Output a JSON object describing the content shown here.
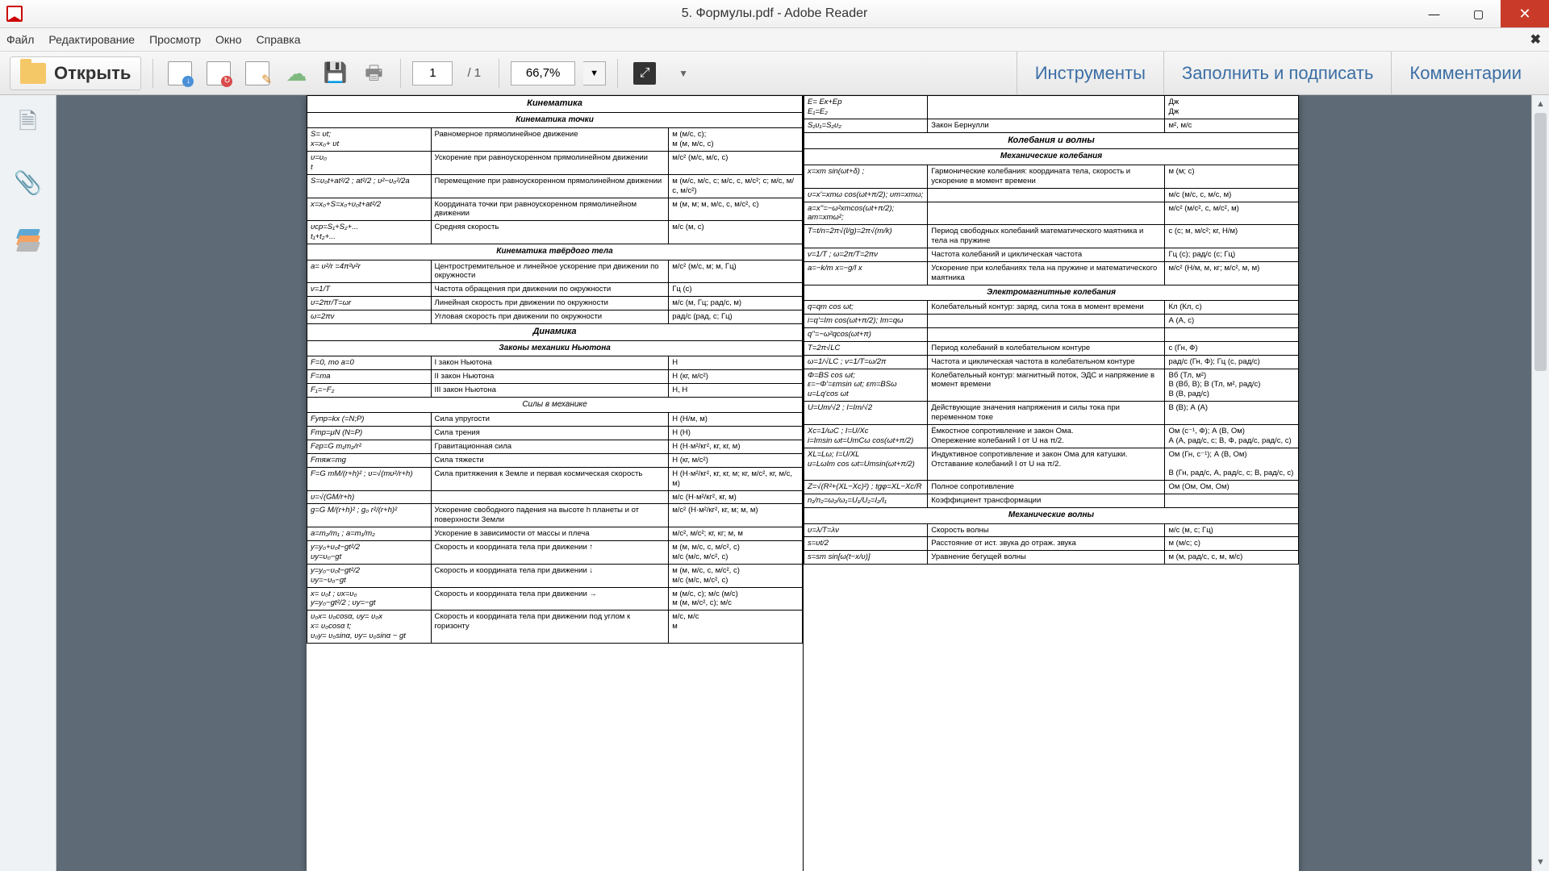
{
  "window": {
    "title": "5. Формулы.pdf - Adobe Reader",
    "controls": {
      "min": "—",
      "max": "▢",
      "close": "✕"
    }
  },
  "menu": {
    "items": [
      "Файл",
      "Редактирование",
      "Просмотр",
      "Окно",
      "Справка"
    ],
    "close_x": "✖"
  },
  "toolbar": {
    "open_label": "Открыть",
    "page_current": "1",
    "page_total": "/   1",
    "zoom": "66,7%",
    "zoom_dd": "▼",
    "fit": "⤢",
    "more": "▼",
    "right_tabs": [
      "Инструменты",
      "Заполнить и подписать",
      "Комментарии"
    ]
  },
  "sidebar": {
    "thumb": "🗎",
    "attach": "📎"
  },
  "doc": {
    "left": {
      "h1": "Кинематика",
      "h2": "Кинематика точки",
      "rows1": [
        [
          "S= υt;\nx=x₀+ υt",
          "Равномерное прямолинейное движение",
          "м (м/с, с);\nм (м, м/с, с)"
        ],
        [
          "υ=υ₀\n  t",
          "Ускорение при равноускоренном прямолинейном движении",
          "м/с² (м/с, м/с, с)"
        ],
        [
          "S=υ₀t+at²/2 ; at²/2 ; υ²−υ₀²/2a",
          "Перемещение  при равноускоренном прямолинейном движении",
          "м (м/с, м/с, с; м/с, с, м/с²; с; м/с, м/с, м/с²)"
        ],
        [
          "x=x₀+S=x₀+υ₀t+at²/2",
          "Координата точки  при равноускоренном прямолинейном движении",
          "м (м, м; м, м/с, с, м/с², с)"
        ],
        [
          "υср=S₁+S₂+...\n     t₁+t₂+...",
          "Средняя скорость",
          "м/с (м, с)"
        ]
      ],
      "h3": "Кинематика твёрдого тела",
      "rows2": [
        [
          "a= υ²/r =4π²ν²r",
          "Центростремительное и линейное ускорение при движении по окружности",
          "м/с² (м/с, м; м, Гц)"
        ],
        [
          "ν=1/T",
          "Частота обращения  при движении по окружности",
          "Гц (с)"
        ],
        [
          "υ=2πr/T=ωr",
          "Линейная скорость при движении по окружности",
          "м/с (м, Гц; рад/с, м)"
        ],
        [
          "ω=2πν",
          "Угловая скорость  при движении по окружности",
          "рад/с (рад, с; Гц)"
        ]
      ],
      "h4": "Динамика",
      "h5": "Законы механики Ньютона",
      "rows3": [
        [
          "F=0, то a=0",
          "I закон Ньютона",
          "Н"
        ],
        [
          "F=ma",
          "II закон Ньютона",
          "Н (кг, м/с²)"
        ],
        [
          "F₁=−F₂",
          "III закон Ньютона",
          "Н, Н"
        ]
      ],
      "h6": "Силы в механике",
      "rows4": [
        [
          "Fупр=kx (=N;P)",
          "Сила упругости",
          "Н (Н/м, м)"
        ],
        [
          "Fтр=μN (N=P)",
          "Сила трения",
          "Н (Н)"
        ],
        [
          "Fгр=G m₁m₂/r²",
          "Гравитационная сила",
          "Н (Н·м²/кг², кг, кг, м)"
        ],
        [
          "Fтяж=mg",
          "Сила тяжести",
          "Н (кг, м/с²)"
        ],
        [
          "F=G mM/(r+h)² ; υ=√(mυ²/r+h)",
          "Сила притяжения к Земле  и первая космическая скорость",
          "Н (Н·м²/кг², кг, кг, м; кг, м/с², кг, м/с, м)"
        ],
        [
          "υ=√(GM/r+h)",
          "",
          "м/с (Н·м²/кг², кг, м)"
        ],
        [
          "g=G M/(r+h)² ; g₀ r²/(r+h)²",
          "Ускорение свободного падения на высоте h планеты и от поверхности Земли",
          "м/с² (Н·м²/кг², кг, м; м, м)"
        ],
        [
          "a=m₂/m₁ ; a=m₁/m₂",
          "Ускорение в зависимости от массы и плеча",
          "м/с², м/с²; кг, кг; м, м"
        ],
        [
          "y=y₀+υ₀t−gt²/2\nυy=υ₀−gt",
          "Скорость и координата тела при движении ↑",
          "м (м, м/с, с, м/с², с)\nм/с (м/с, м/с², с)"
        ],
        [
          "y=y₀−υ₀t−gt²/2\nυy=−υ₀−gt",
          "Скорость и координата тела при движении ↓",
          "м (м, м/с, с, м/с², с)\nм/с (м/с, м/с², с)"
        ],
        [
          "x= υ₀t ; υx=υ₀\ny=y₀−gt²/2 ; υy=−gt",
          "Скорость и координата тела при движении →",
          "м (м/с, с); м/с (м/с)\nм (м, м/с², с); м/с"
        ],
        [
          "υ₀x= υ₀cosα, υy= υ₀x\nx= υ₀cosα t;\nυ₀y= υ₀sinα, υy= υ₀sinα − gt",
          "Скорость и координата тела при движении под углом к горизонту",
          "м/с, м/с\nм"
        ]
      ]
    },
    "right": {
      "rowsTop": [
        [
          "E= Eк+Eр\nE₁=E₂",
          "",
          "Дж\nДж"
        ],
        [
          "S₁υ₁=S₂υ₂",
          "Закон Бернулли",
          "м², м/с"
        ]
      ],
      "h1": "Колебания и волны",
      "h2": "Механические колебания",
      "rows1": [
        [
          "x=xm sin(ωt+δ) ;",
          "Гармонические колебания: координата тела, скорость и ускорение в момент времени",
          "м (м; с)"
        ],
        [
          "υ=x'=xmω cos(ωt+π/2); υm=xmω;",
          "",
          "м/с (м/с, с, м/с, м)"
        ],
        [
          "a=x''=−ω²xmcos(ωt+π/2); am=xmω²;",
          "",
          "м/с² (м/с², с, м/с², м)"
        ],
        [
          "T=t/n=2π√(l/g)=2π√(m/k)",
          "Период свободных колебаний математического маятника и тела на пружине",
          "с (с; м, м/с²; кг, Н/м)"
        ],
        [
          "ν=1/T ; ω=2π/T=2πν",
          "Частота колебаний и циклическая частота",
          "Гц (с); рад/с (с; Гц)"
        ],
        [
          "a=−k/m x=−g/l x",
          "Ускорение при колебаниях тела на пружине и математического маятника",
          "м/с² (Н/м, м, кг; м/с², м, м)"
        ]
      ],
      "h3": "Электромагнитные колебания",
      "rows2": [
        [
          "q=qm cos ωt;",
          "Колебательный контур: заряд, сила тока в момент времени",
          "Кл  (Кл, с)"
        ],
        [
          "i=q'=Im cos(ωt+π/2); Im=qω",
          "",
          "А (А, с)"
        ],
        [
          "q''=−ω²qcos(ωt+π)",
          "",
          ""
        ],
        [
          "T=2π√LC",
          "Период колебаний в колебательном контуре",
          "с (Гн, Ф)"
        ],
        [
          "ω=1/√LC ; ν=1/T=ω/2π",
          "Частота и циклическая частота в колебательном контуре",
          "рад/с (Гн, Ф); Гц (с, рад/с)"
        ],
        [
          "Φ=BS cos ωt;\nε=−Φ'=εmsin ωt; εm=BSω\nu=Lq'cos ωt",
          "Колебательный контур: магнитный поток, ЭДС и напряжение в момент времени",
          "Вб (Тл, м²)\nВ (Вб, В); В (Тл, м², рад/с)\nВ (В, рад/с)"
        ],
        [
          "U=Um/√2 ; I=Im/√2",
          "Действующие значения напряжения и силы тока при переменном токе",
          "В (В);  А (А)"
        ],
        [
          "Xc=1/ωC ; I=U/Xc\ni=Imsin ωt=UmCω cos(ωt+π/2)",
          "Ёмкостное сопротивление и закон Ома.\nОпережение колебаний I от U на π/2.",
          "Ом (с⁻¹, Ф);  А (В, Ом)\nА (А, рад/с, с; В, Ф, рад/с, рад/с, с)"
        ],
        [
          "XL=Lω; I=U/XL\nu=LωIm cos ωt=Umsin(ωt+π/2)",
          "Индуктивное сопротивление и закон Ома для катушки.\nОтставание колебаний I от U на π/2.",
          "Ом (Гн, с⁻¹); А (В, Ом)\n\nВ (Гн, рад/с, А, рад/с, с; В, рад/с, с)"
        ],
        [
          "Z=√(R²+(XL−Xc)²) ; tgφ=XL−Xc/R",
          "Полное сопротивление",
          "Ом (Ом, Ом, Ом)"
        ],
        [
          "n₁/n₂=ω₂/ω₁=U₁/U₂=I₂/I₁",
          "Коэффициент трансформации",
          ""
        ]
      ],
      "h4": "Механические волны",
      "rows3": [
        [
          "υ=λ/T=λν",
          "Скорость волны",
          "м/с (м, с; Гц)"
        ],
        [
          "s=υt/2",
          "Расстояние от ист. звука до отраж. звука",
          "м (м/с; с)"
        ],
        [
          "s=sm sin[ω(t−x/υ)]",
          "Уравнение бегущей волны",
          "м (м, рад/с, с, м, м/с)"
        ]
      ]
    }
  }
}
